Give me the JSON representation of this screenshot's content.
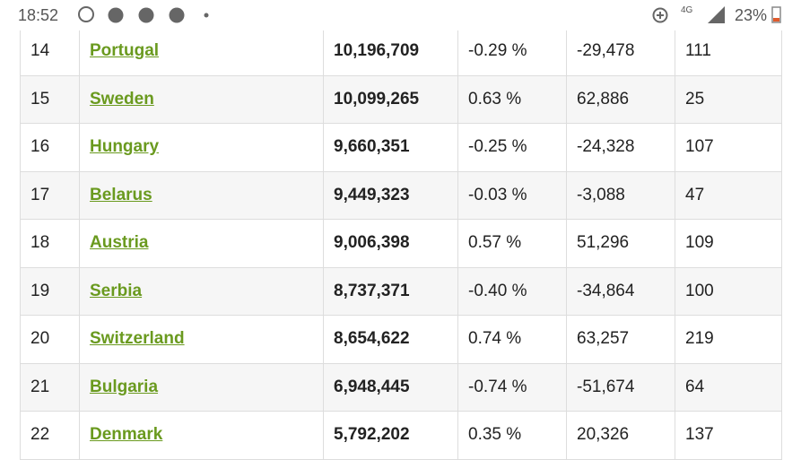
{
  "status_bar": {
    "time": "18:52",
    "network": "4G",
    "battery": "23%"
  },
  "table": {
    "rows": [
      [
        "14",
        "Portugal",
        "10,196,709",
        "-0.29 %",
        "-29,478",
        "111"
      ],
      [
        "15",
        "Sweden",
        "10,099,265",
        "0.63 %",
        "62,886",
        "25"
      ],
      [
        "16",
        "Hungary",
        "9,660,351",
        "-0.25 %",
        "-24,328",
        "107"
      ],
      [
        "17",
        "Belarus",
        "9,449,323",
        "-0.03 %",
        "-3,088",
        "47"
      ],
      [
        "18",
        "Austria",
        "9,006,398",
        "0.57 %",
        "51,296",
        "109"
      ],
      [
        "19",
        "Serbia",
        "8,737,371",
        "-0.40 %",
        "-34,864",
        "100"
      ],
      [
        "20",
        "Switzerland",
        "8,654,622",
        "0.74 %",
        "63,257",
        "219"
      ],
      [
        "21",
        "Bulgaria",
        "6,948,445",
        "-0.74 %",
        "-51,674",
        "64"
      ],
      [
        "22",
        "Denmark",
        "5,792,202",
        "0.35 %",
        "20,326",
        "137"
      ]
    ]
  }
}
